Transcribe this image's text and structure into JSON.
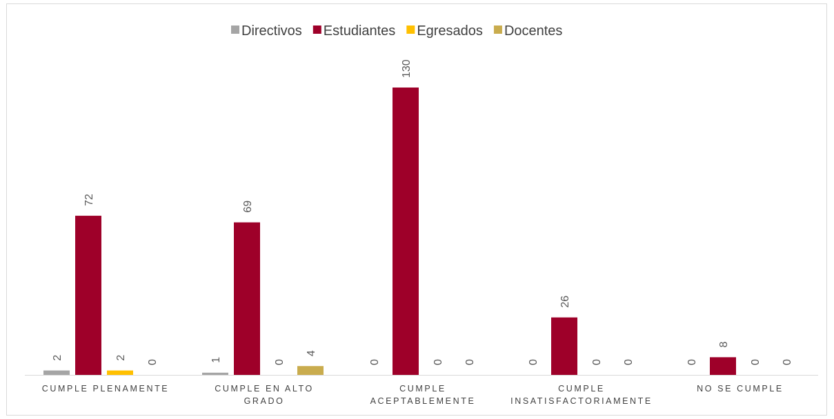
{
  "chart_data": {
    "type": "bar",
    "categories": [
      [
        "CUMPLE PLENAMENTE"
      ],
      [
        "CUMPLE EN ALTO",
        "GRADO"
      ],
      [
        "CUMPLE",
        "ACEPTABLEMENTE"
      ],
      [
        "CUMPLE",
        "INSATISFACTORIAMENTE"
      ],
      [
        "NO SE CUMPLE"
      ]
    ],
    "series": [
      {
        "name": "Directivos",
        "color": "#a5a5a5",
        "values": [
          2,
          1,
          0,
          0,
          0
        ]
      },
      {
        "name": "Estudiantes",
        "color": "#9e0029",
        "values": [
          72,
          69,
          130,
          26,
          8
        ]
      },
      {
        "name": "Egresados",
        "color": "#ffc000",
        "values": [
          2,
          0,
          0,
          0,
          0
        ]
      },
      {
        "name": "Docentes",
        "color": "#c9ac4e",
        "values": [
          0,
          4,
          0,
          0,
          0
        ]
      }
    ],
    "ylim": [
      0,
      140
    ],
    "legend_position": "top",
    "data_labels": true,
    "grid": false
  }
}
